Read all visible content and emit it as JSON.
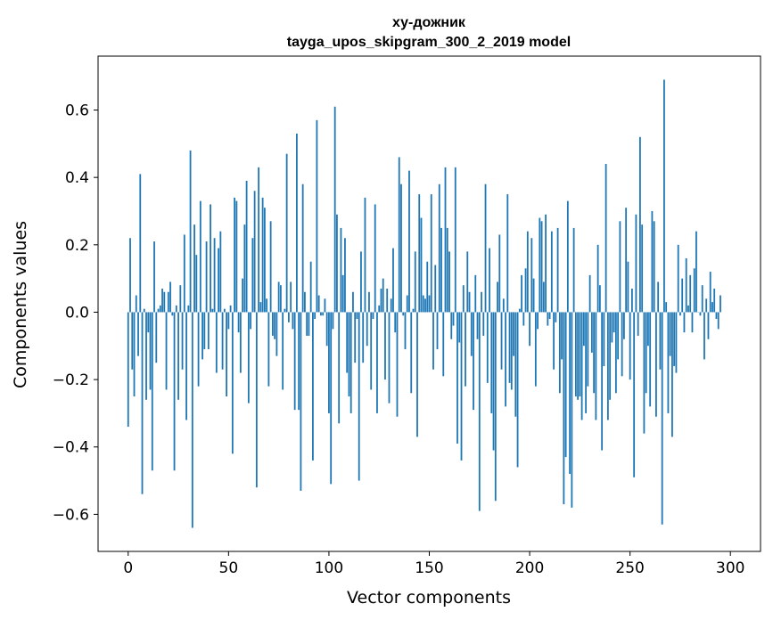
{
  "chart_data": {
    "type": "bar",
    "title_lines": [
      "ху-дожник",
      "tayga_upos_skipgram_300_2_2019 model"
    ],
    "xlabel": "Vector components",
    "ylabel": "Components values",
    "xlim": [
      -15,
      315
    ],
    "ylim": [
      -0.71,
      0.76
    ],
    "xticks": [
      0,
      50,
      100,
      150,
      200,
      250,
      300
    ],
    "xtick_labels": [
      "0",
      "50",
      "100",
      "150",
      "200",
      "250",
      "300"
    ],
    "yticks": [
      -0.6,
      -0.4,
      -0.2,
      0.0,
      0.2,
      0.4,
      0.6
    ],
    "ytick_labels": [
      "−0.6",
      "−0.4",
      "−0.2",
      "0.0",
      "0.2",
      "0.4",
      "0.6"
    ],
    "bar_color": "#1f77b4",
    "bar_width": 0.8,
    "x": "indices 0..299",
    "values": [
      -0.34,
      0.22,
      -0.17,
      -0.25,
      0.05,
      -0.13,
      0.41,
      -0.54,
      0.01,
      -0.26,
      -0.06,
      -0.23,
      -0.47,
      0.21,
      -0.15,
      0.01,
      0.02,
      0.07,
      0.06,
      -0.23,
      0.06,
      0.09,
      -0.01,
      -0.47,
      0.02,
      -0.26,
      0.08,
      -0.17,
      0.23,
      -0.32,
      0.02,
      0.48,
      -0.64,
      0.26,
      0.17,
      -0.22,
      0.33,
      -0.14,
      -0.11,
      0.21,
      -0.11,
      0.32,
      0.01,
      0.22,
      -0.18,
      0.19,
      0.24,
      -0.17,
      0.01,
      -0.25,
      -0.05,
      0.02,
      -0.42,
      0.34,
      0.33,
      -0.06,
      -0.18,
      0.1,
      0.26,
      0.39,
      -0.27,
      -0.05,
      0.22,
      0.36,
      -0.52,
      0.43,
      0.03,
      0.34,
      0.31,
      0.04,
      -0.22,
      0.27,
      -0.07,
      -0.08,
      -0.13,
      0.09,
      0.08,
      -0.23,
      0.01,
      0.47,
      -0.03,
      0.09,
      -0.05,
      -0.29,
      0.53,
      -0.29,
      -0.53,
      0.38,
      0.06,
      -0.07,
      -0.07,
      0.15,
      -0.44,
      -0.02,
      0.57,
      0.05,
      -0.01,
      -0.01,
      0.04,
      -0.1,
      -0.3,
      -0.51,
      -0.05,
      0.61,
      0.29,
      -0.33,
      0.25,
      0.11,
      0.22,
      -0.18,
      -0.25,
      -0.3,
      0.06,
      -0.15,
      -0.02,
      -0.5,
      0.18,
      -0.15,
      0.34,
      -0.1,
      0.06,
      -0.23,
      -0.02,
      0.32,
      -0.3,
      0.02,
      0.07,
      0.1,
      -0.2,
      0.07,
      -0.27,
      0.04,
      0.19,
      -0.06,
      -0.31,
      0.46,
      0.38,
      -0.01,
      -0.11,
      0.05,
      0.42,
      -0.24,
      0.01,
      0.18,
      -0.37,
      0.35,
      0.28,
      0.05,
      0.04,
      0.15,
      0.05,
      0.35,
      -0.17,
      0.14,
      -0.11,
      0.38,
      0.25,
      -0.19,
      0.43,
      0.25,
      0.18,
      -0.08,
      -0.04,
      0.43,
      -0.39,
      -0.09,
      -0.44,
      0.08,
      -0.22,
      0.18,
      0.06,
      -0.13,
      -0.29,
      0.11,
      -0.08,
      -0.59,
      0.06,
      -0.07,
      0.38,
      -0.21,
      0.19,
      -0.3,
      -0.41,
      -0.56,
      0.09,
      0.23,
      -0.17,
      0.04,
      -0.28,
      0.35,
      -0.21,
      -0.23,
      -0.13,
      -0.31,
      -0.46,
      0.01,
      0.11,
      -0.04,
      0.13,
      0.24,
      -0.1,
      0.22,
      0.1,
      -0.22,
      -0.05,
      0.28,
      0.27,
      0.09,
      0.29,
      -0.04,
      -0.02,
      0.24,
      -0.17,
      -0.03,
      0.25,
      -0.24,
      -0.14,
      -0.57,
      -0.43,
      0.33,
      -0.48,
      -0.58,
      0.25,
      -0.25,
      -0.26,
      -0.25,
      -0.32,
      -0.1,
      -0.3,
      -0.22,
      0.11,
      -0.12,
      -0.24,
      -0.32,
      0.2,
      0.08,
      -0.41,
      -0.16,
      0.44,
      -0.32,
      -0.26,
      -0.09,
      -0.06,
      -0.24,
      -0.14,
      0.27,
      -0.19,
      -0.08,
      0.31,
      0.15,
      -0.2,
      0.07,
      -0.49,
      0.29,
      -0.07,
      0.52,
      0.26,
      -0.36,
      -0.24,
      -0.1,
      -0.28,
      0.3,
      0.27,
      -0.31,
      0.09,
      -0.17,
      -0.63,
      0.69,
      0.03,
      -0.3,
      -0.13,
      -0.37,
      -0.16,
      -0.18,
      0.2,
      -0.01,
      0.1,
      -0.06,
      0.16,
      0.02,
      0.11,
      -0.06,
      0.13,
      0.24,
      0.0,
      -0.01,
      0.08,
      -0.14,
      0.04,
      -0.08,
      0.12,
      0.03,
      0.07,
      -0.02,
      -0.05,
      0.05
    ]
  }
}
